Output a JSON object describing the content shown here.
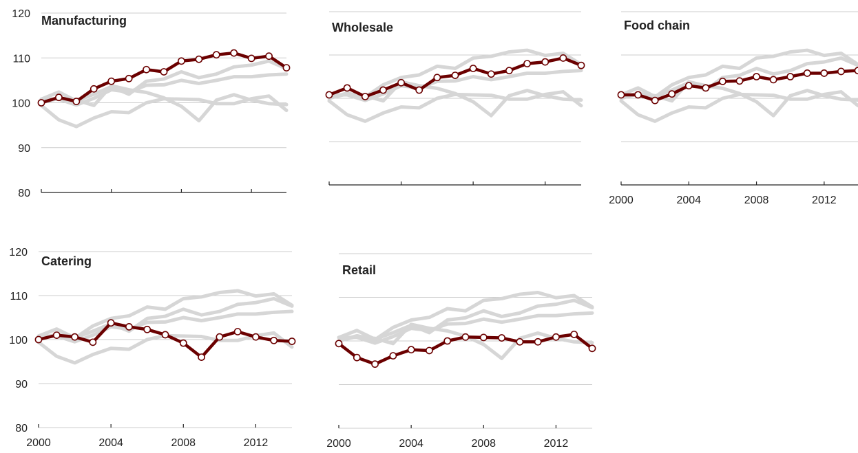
{
  "chart_data": {
    "type": "line",
    "title": "",
    "xlabel": "",
    "ylabel": "",
    "ylim": [
      80,
      120
    ],
    "xlim": [
      2000,
      2014
    ],
    "y_ticks": [
      "80",
      "90",
      "100",
      "110",
      "120"
    ],
    "x_ticks": [
      "2000",
      "2004",
      "2008",
      "2012"
    ],
    "grid": true,
    "colors": {
      "highlight": "#6b0000",
      "context": "#d6d6d6",
      "grid": "#cccccc",
      "marker_fill": "#ffffff"
    },
    "x": [
      2000,
      2001,
      2002,
      2003,
      2004,
      2005,
      2006,
      2007,
      2008,
      2009,
      2010,
      2011,
      2012,
      2013,
      2014
    ],
    "panels": [
      {
        "title": "Manufacturing",
        "values": [
          100,
          101.2,
          100.3,
          103.1,
          104.8,
          105.4,
          107.4,
          106.9,
          109.3,
          109.7,
          110.7,
          111.1,
          109.9,
          110.4,
          107.8
        ]
      },
      {
        "title": "Wholesale",
        "values": [
          100.8,
          102.4,
          100.4,
          101.9,
          103.6,
          101.9,
          104.8,
          105.3,
          106.9,
          105.6,
          106.4,
          108,
          108.4,
          109.3,
          107.6
        ]
      },
      {
        "title": "Food chain",
        "values": [
          100.8,
          100.8,
          99.5,
          101,
          102.9,
          102.4,
          103.9,
          104,
          105,
          104.3,
          105,
          105.8,
          105.8,
          106.2,
          106.4
        ]
      },
      {
        "title": "Catering",
        "values": [
          100,
          101,
          100.6,
          99.4,
          103.8,
          102.9,
          102.3,
          101.1,
          99.2,
          96,
          100.6,
          101.8,
          100.6,
          99.8,
          99.6
        ]
      },
      {
        "title": "Retail",
        "values": [
          99.4,
          96.2,
          94.7,
          96.6,
          98,
          97.8,
          100,
          100.9,
          100.8,
          100.7,
          99.8,
          99.8,
          100.9,
          101.5,
          98.3
        ]
      }
    ]
  }
}
